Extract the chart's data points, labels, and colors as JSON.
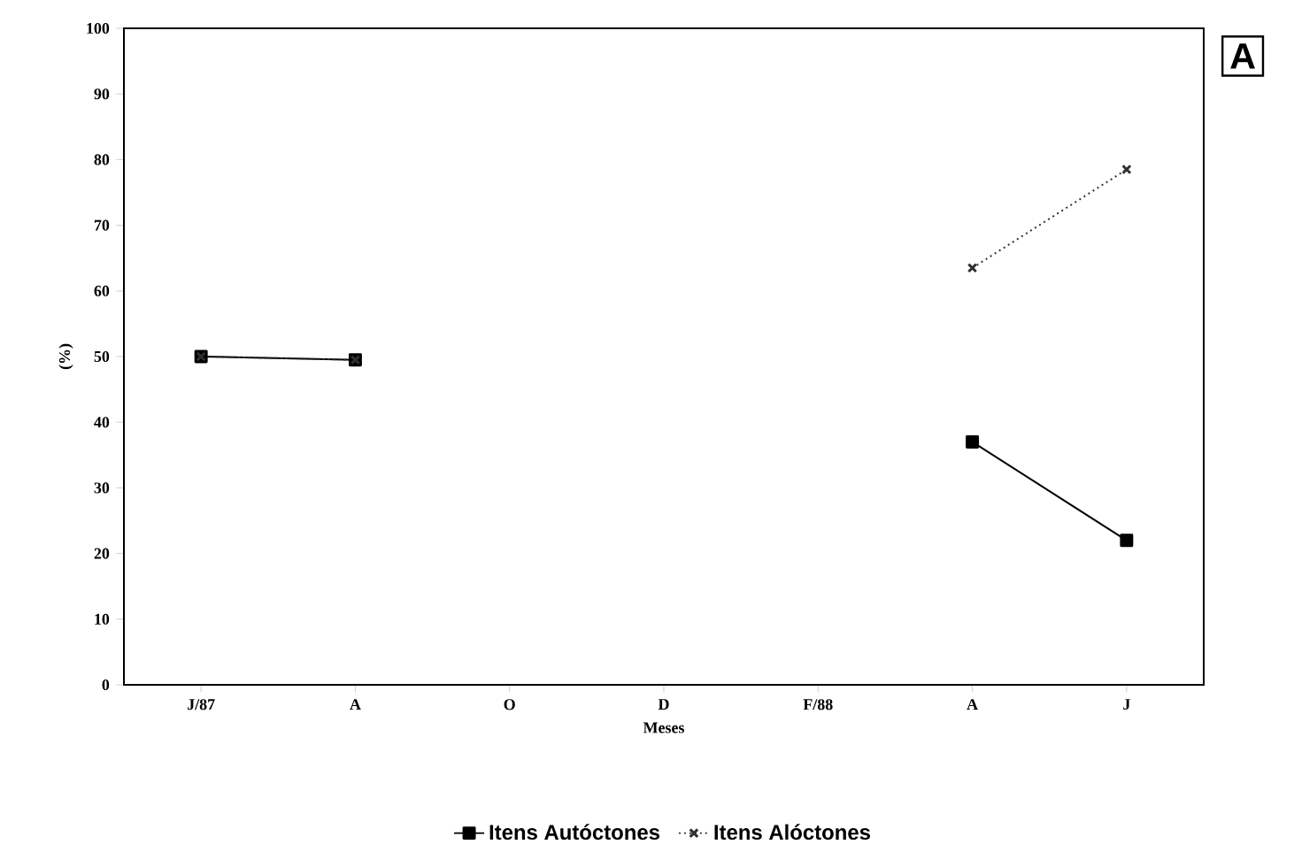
{
  "chart_data": {
    "type": "line",
    "xlabel": "Meses",
    "ylabel": "(%)",
    "categories": [
      "J/87",
      "A",
      "O",
      "D",
      "F/88",
      "A",
      "J"
    ],
    "series": [
      {
        "name": "Itens Autóctones",
        "color": "#000000",
        "marker": "square",
        "line_style": "solid",
        "values": [
          50,
          49.5,
          null,
          null,
          null,
          37,
          22
        ]
      },
      {
        "name": "Itens Alóctones",
        "color": "#303030",
        "marker": "cross",
        "line_style": "dotted",
        "values": [
          50,
          49.5,
          null,
          null,
          null,
          63.5,
          78.5
        ]
      }
    ],
    "ylim": [
      0,
      100
    ],
    "yticks": [
      0,
      10,
      20,
      30,
      40,
      50,
      60,
      70,
      80,
      90,
      100
    ],
    "grid": false,
    "legend": "bottom",
    "annotations": [
      "A"
    ]
  }
}
